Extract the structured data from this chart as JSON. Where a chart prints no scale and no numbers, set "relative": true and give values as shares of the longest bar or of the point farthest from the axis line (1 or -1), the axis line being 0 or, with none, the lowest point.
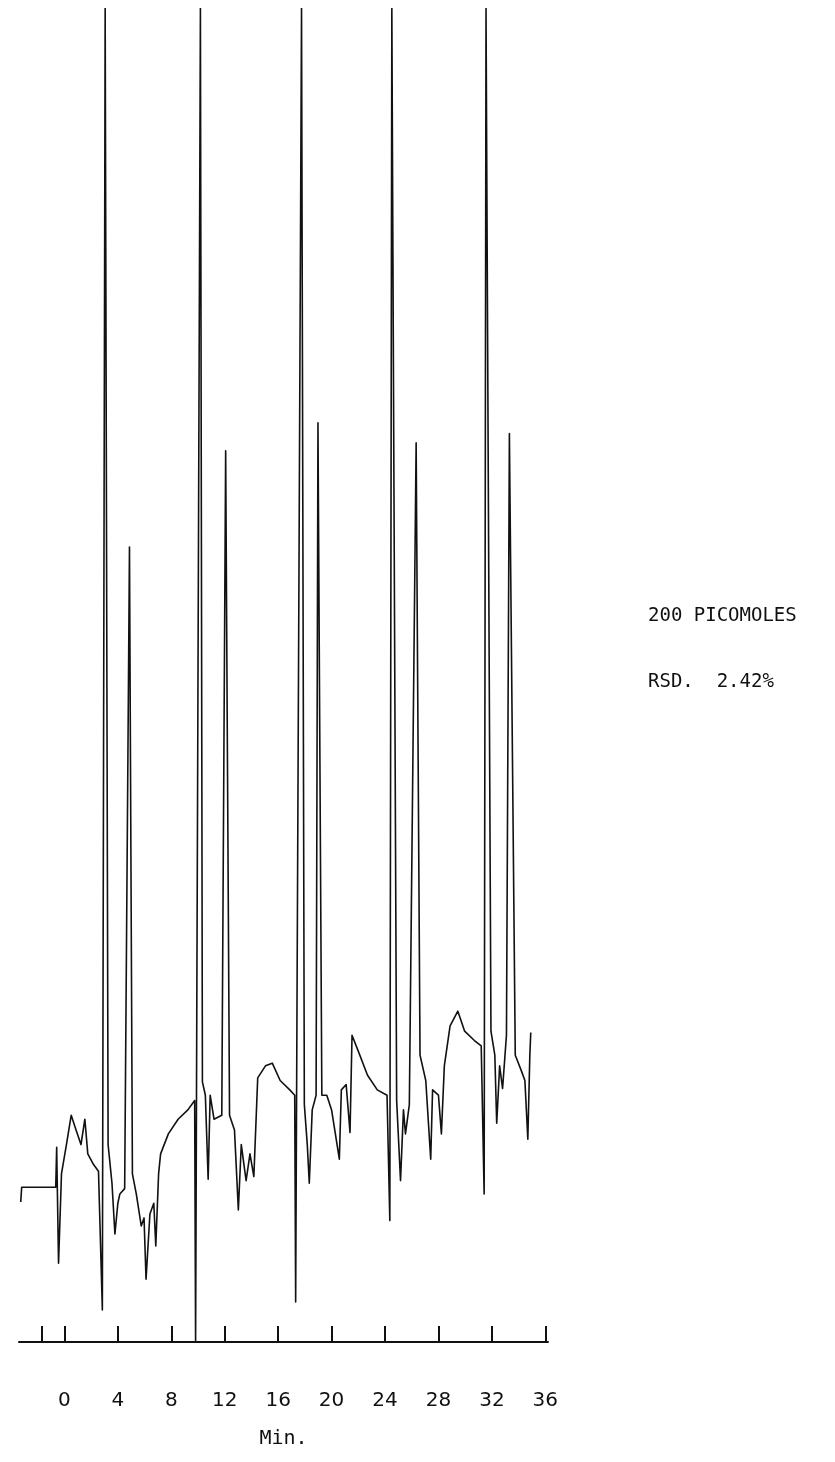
{
  "chart_data": {
    "type": "line",
    "relative": true,
    "xlabel": "Min.",
    "marker": "none",
    "grid": false,
    "xlim": [
      -3.4,
      36.2
    ],
    "xticks": [
      {
        "value": -1.7,
        "label": null
      },
      0,
      4,
      8,
      12,
      16,
      20,
      24,
      28,
      32,
      36
    ],
    "annotations": [
      "200 PICOMOLES",
      "RSD.  2.42%"
    ],
    "series": [
      {
        "color": "#111111",
        "x": [
          -3.27,
          -3.2,
          -0.65,
          -0.58,
          -0.44,
          -0.22,
          0.15,
          0.51,
          0.87,
          1.24,
          1.53,
          1.75,
          2.18,
          2.55,
          2.84,
          3.05,
          3.27,
          3.56,
          3.78,
          4.0,
          4.15,
          4.51,
          4.87,
          5.09,
          5.38,
          5.75,
          5.96,
          6.11,
          6.4,
          6.69,
          6.84,
          7.05,
          7.2,
          7.78,
          8.51,
          9.24,
          9.75,
          9.82,
          10.18,
          10.33,
          10.55,
          10.76,
          10.91,
          11.2,
          11.78,
          12.07,
          12.36,
          12.73,
          13.02,
          13.24,
          13.6,
          13.89,
          14.18,
          14.47,
          15.05,
          15.56,
          16.15,
          16.87,
          17.24,
          17.31,
          17.75,
          17.96,
          18.18,
          18.33,
          18.55,
          18.84,
          18.98,
          19.27,
          19.64,
          20.0,
          20.58,
          20.73,
          21.09,
          21.38,
          21.53,
          21.96,
          22.69,
          23.42,
          24.15,
          24.36,
          24.51,
          24.87,
          25.16,
          25.38,
          25.53,
          25.82,
          26.33,
          26.62,
          27.05,
          27.42,
          27.56,
          28.0,
          28.22,
          28.44,
          28.87,
          29.45,
          29.96,
          30.69,
          31.2,
          31.42,
          31.56,
          31.93,
          32.22,
          32.36,
          32.58,
          32.8,
          33.09,
          33.31,
          33.75,
          34.18,
          34.47,
          34.69,
          34.84,
          34.91
        ],
        "values": [
          0.105,
          0.116,
          0.116,
          0.146,
          0.059,
          0.126,
          0.148,
          0.17,
          0.159,
          0.148,
          0.167,
          0.141,
          0.133,
          0.128,
          0.024,
          1,
          0.148,
          0.119,
          0.081,
          0.104,
          0.111,
          0.115,
          0.596,
          0.126,
          0.111,
          0.087,
          0.093,
          0.047,
          0.096,
          0.104,
          0.072,
          0.126,
          0.141,
          0.156,
          0.167,
          0.174,
          0.181,
          0,
          1,
          0.195,
          0.185,
          0.122,
          0.185,
          0.167,
          0.17,
          0.668,
          0.17,
          0.159,
          0.099,
          0.148,
          0.121,
          0.141,
          0.124,
          0.198,
          0.207,
          0.209,
          0.196,
          0.189,
          0.185,
          0.03,
          1,
          0.178,
          0.148,
          0.119,
          0.174,
          0.185,
          0.689,
          0.185,
          0.185,
          0.174,
          0.137,
          0.189,
          0.193,
          0.157,
          0.23,
          0.219,
          0.2,
          0.189,
          0.185,
          0.091,
          1,
          0.181,
          0.121,
          0.174,
          0.156,
          0.178,
          0.674,
          0.215,
          0.196,
          0.137,
          0.189,
          0.185,
          0.156,
          0.207,
          0.237,
          0.248,
          0.233,
          0.226,
          0.222,
          0.111,
          1,
          0.233,
          0.215,
          0.164,
          0.207,
          0.19,
          0.23,
          0.681,
          0.215,
          0.204,
          0.196,
          0.152,
          0.215,
          0.232
        ]
      }
    ]
  }
}
